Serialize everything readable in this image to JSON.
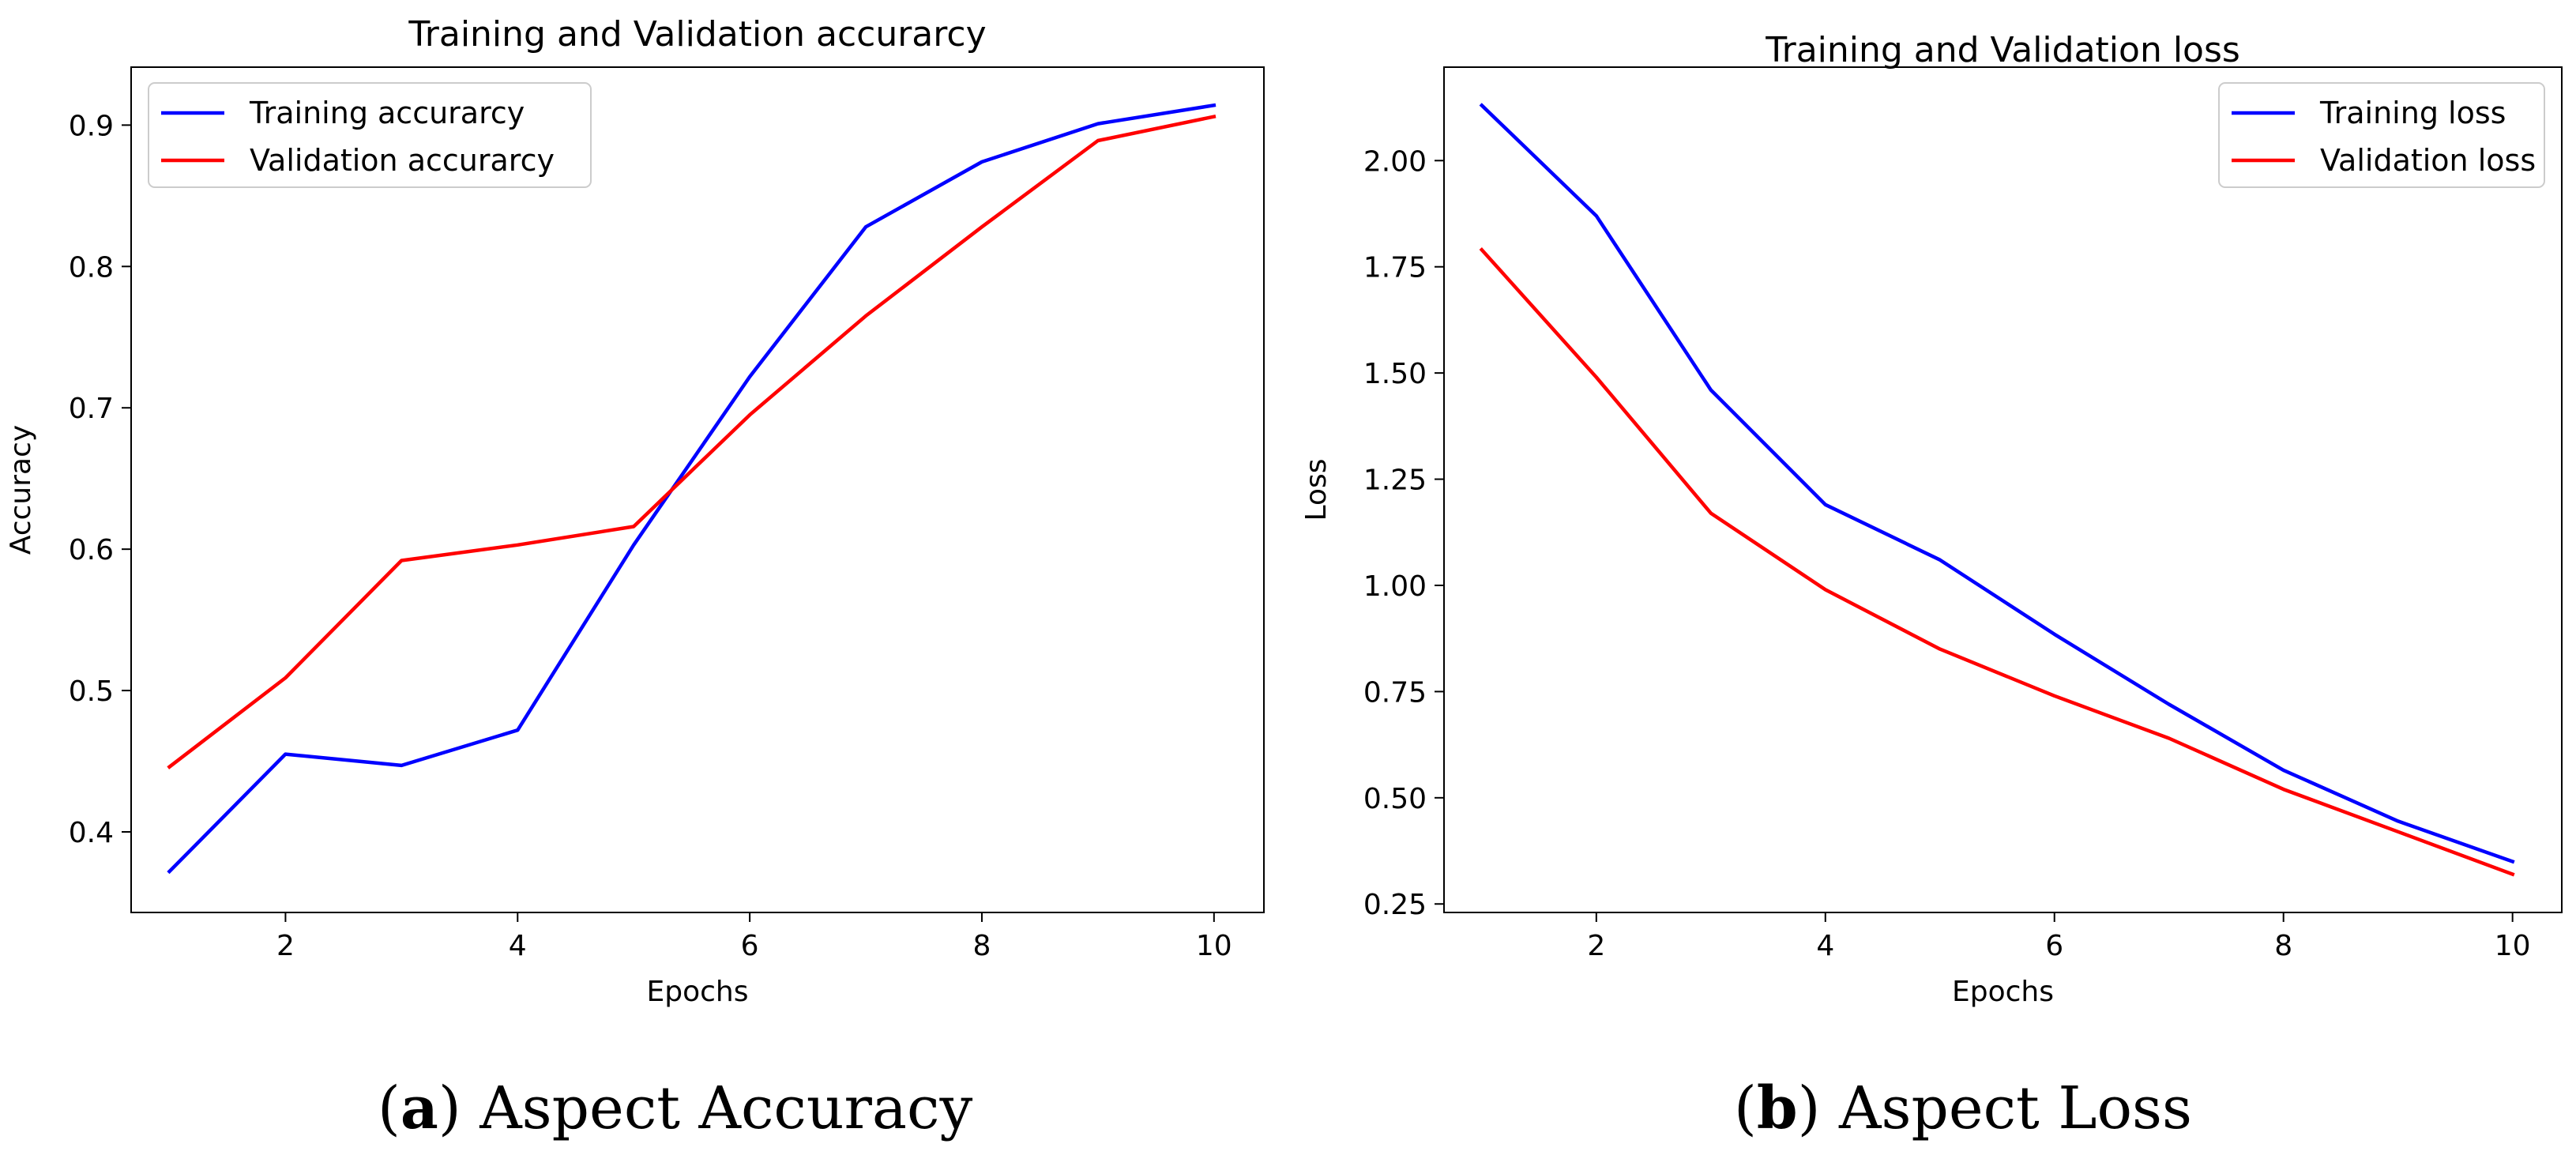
{
  "chart_data": [
    {
      "type": "line",
      "title": "Training and Validation accurarcy",
      "xlabel": "Epochs",
      "ylabel": "Accuracy",
      "x": [
        1,
        2,
        3,
        4,
        5,
        6,
        7,
        8,
        9,
        10
      ],
      "xlim": [
        0.67,
        10.43
      ],
      "ylim": [
        0.343,
        0.941
      ],
      "xticks": [
        2,
        4,
        6,
        8,
        10
      ],
      "yticks": [
        0.4,
        0.5,
        0.6,
        0.7,
        0.8,
        0.9
      ],
      "ytick_labels": [
        "0.4",
        "0.5",
        "0.6",
        "0.7",
        "0.8",
        "0.9"
      ],
      "grid": false,
      "legend_position": "top-left",
      "series": [
        {
          "name": "Training accurarcy",
          "color": "#0000ff",
          "values": [
            0.372,
            0.455,
            0.447,
            0.472,
            0.603,
            0.722,
            0.828,
            0.874,
            0.901,
            0.914
          ]
        },
        {
          "name": "Validation accurarcy",
          "color": "#ff0000",
          "values": [
            0.446,
            0.509,
            0.592,
            0.603,
            0.616,
            0.695,
            0.765,
            0.828,
            0.889,
            0.906
          ]
        }
      ],
      "caption": {
        "letter": "a",
        "text": "Aspect Accuracy"
      }
    },
    {
      "type": "line",
      "title": "Training and Validation loss",
      "xlabel": "Epochs",
      "ylabel": "Loss",
      "x": [
        1,
        2,
        3,
        4,
        5,
        6,
        7,
        8,
        9,
        10
      ],
      "xlim": [
        0.67,
        10.43
      ],
      "ylim": [
        0.23,
        2.22
      ],
      "xticks": [
        2,
        4,
        6,
        8,
        10
      ],
      "yticks": [
        0.25,
        0.5,
        0.75,
        1.0,
        1.25,
        1.5,
        1.75,
        2.0
      ],
      "ytick_labels": [
        "0.25",
        "0.50",
        "0.75",
        "1.00",
        "1.25",
        "1.50",
        "1.75",
        "2.00"
      ],
      "grid": false,
      "legend_position": "top-right",
      "series": [
        {
          "name": "Training loss",
          "color": "#0000ff",
          "values": [
            2.13,
            1.87,
            1.46,
            1.19,
            1.06,
            0.885,
            0.72,
            0.565,
            0.445,
            0.35
          ]
        },
        {
          "name": "Validation loss",
          "color": "#ff0000",
          "values": [
            1.79,
            1.49,
            1.17,
            0.99,
            0.85,
            0.74,
            0.64,
            0.52,
            0.42,
            0.32
          ]
        }
      ],
      "caption": {
        "letter": "b",
        "text": "Aspect Loss"
      }
    }
  ]
}
